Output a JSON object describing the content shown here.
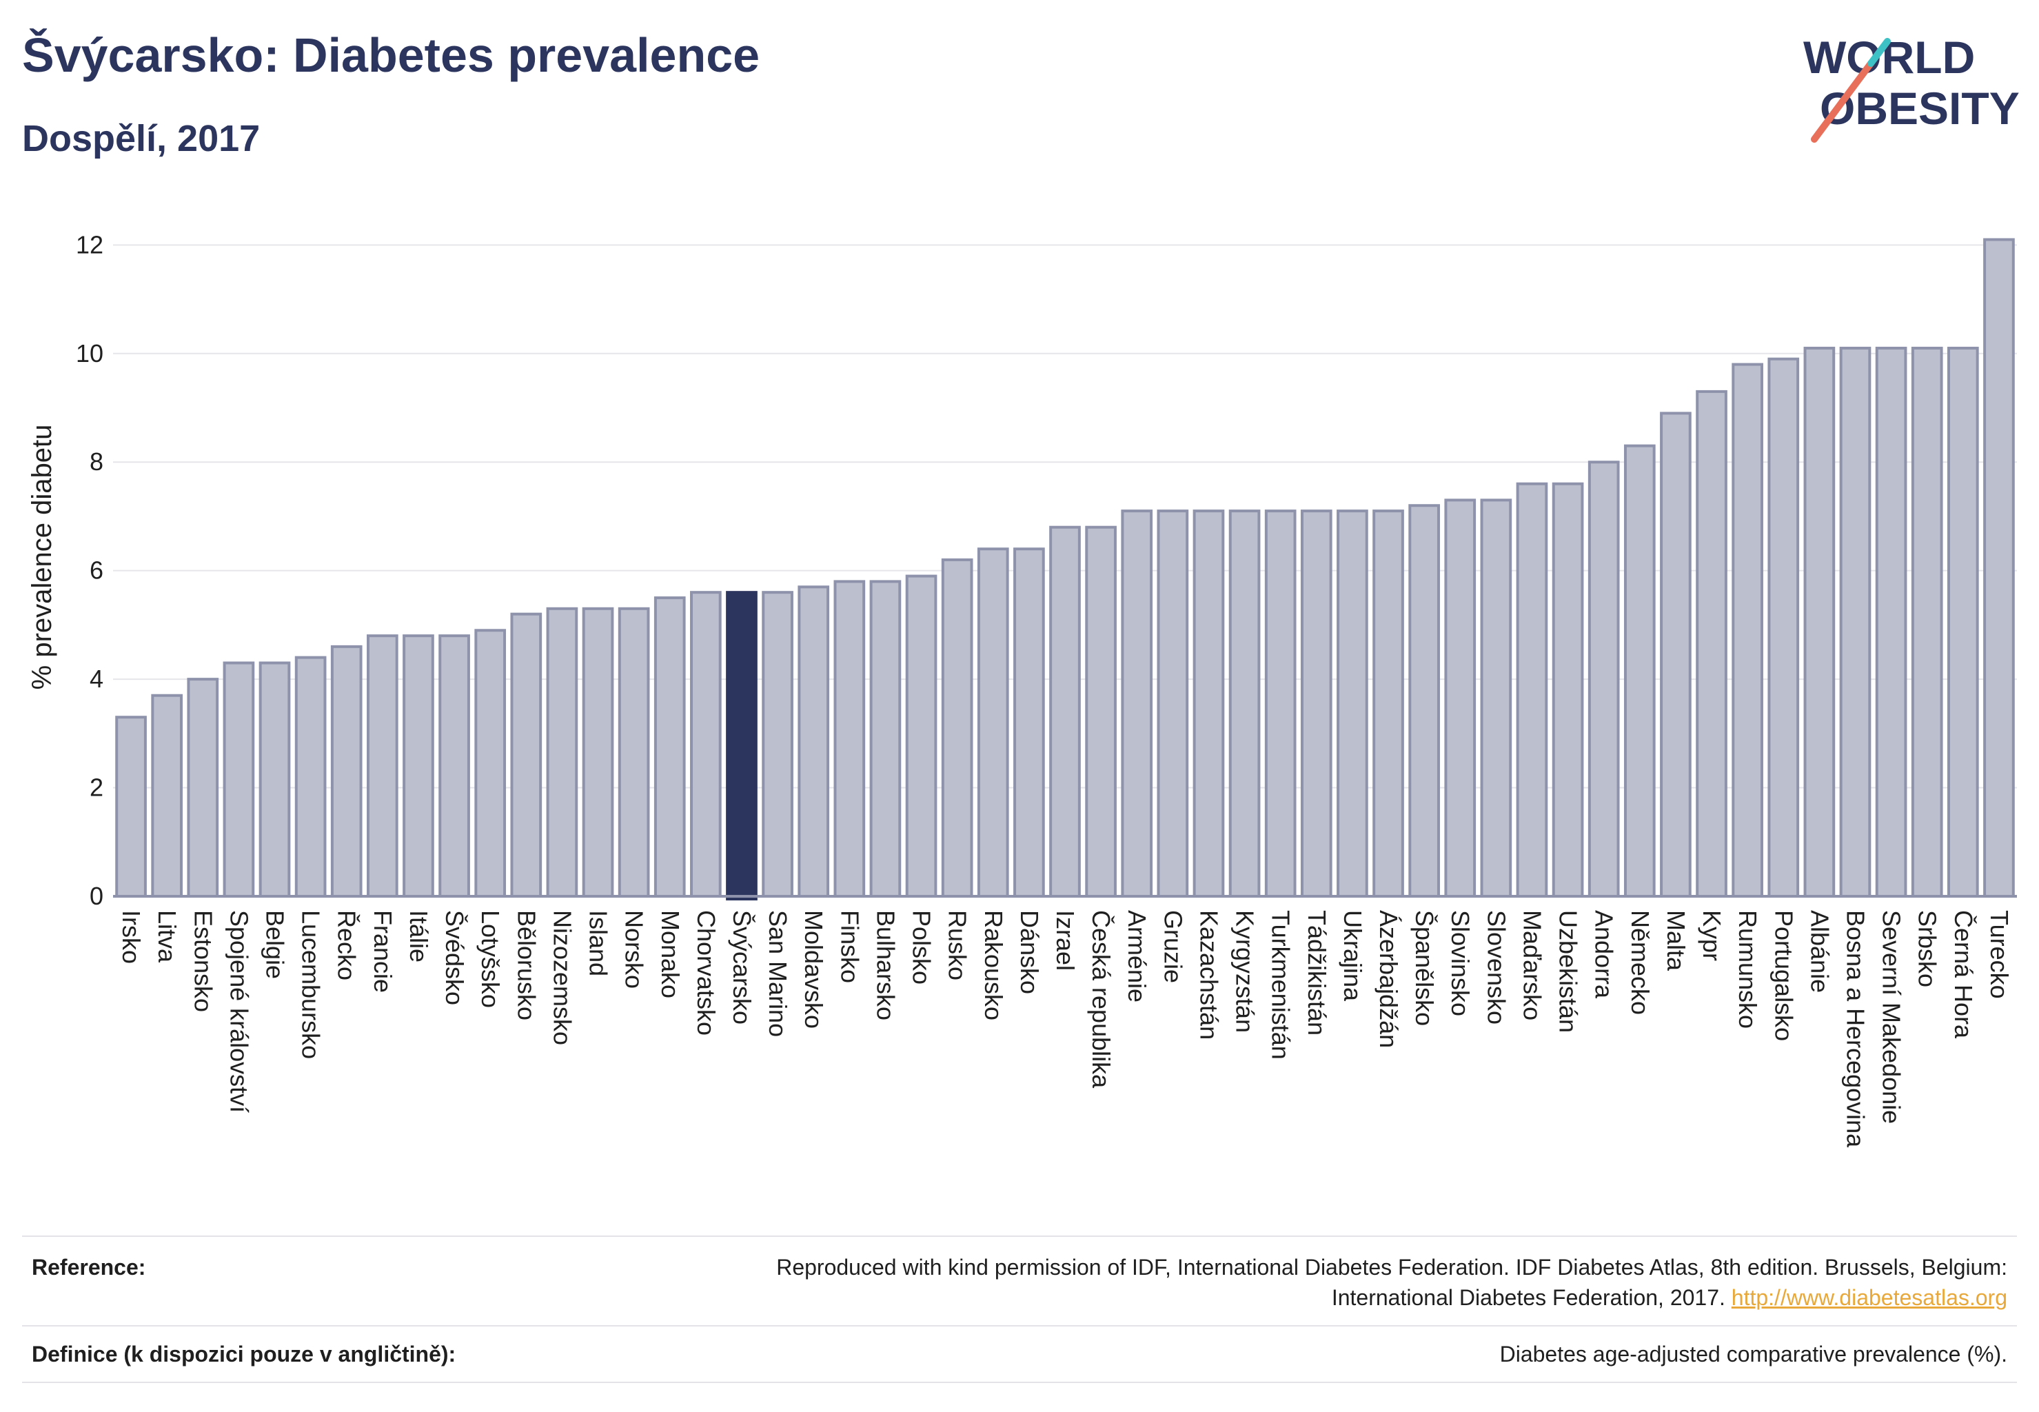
{
  "header": {
    "title": "Švýcarsko: Diabetes prevalence",
    "subtitle": "Dospělí, 2017"
  },
  "logo": {
    "line1": "WORLD",
    "line2": "OBESITY",
    "accent_color": "#e8705a",
    "accent_color_2": "#3ec1c4"
  },
  "colors": {
    "bar": "#bcbfcd",
    "bar_border": "#8e93ab",
    "highlight": "#2c355e",
    "grid": "#e6e6ea",
    "text": "#1f1f1f"
  },
  "chart_data": {
    "type": "bar",
    "ylabel": "% prevalence diabetu",
    "ylim": [
      0,
      12.5
    ],
    "yticks": [
      0,
      2,
      4,
      6,
      8,
      10,
      12
    ],
    "grid": true,
    "highlight_category": "Švýcarsko",
    "categories": [
      "Irsko",
      "Litva",
      "Estonsko",
      "Spojené království",
      "Belgie",
      "Lucembursko",
      "Řecko",
      "Francie",
      "Itálie",
      "Švédsko",
      "Lotyšsko",
      "Bělorusko",
      "Nizozemsko",
      "Island",
      "Norsko",
      "Monako",
      "Chorvatsko",
      "Švýcarsko",
      "San Marino",
      "Moldavsko",
      "Finsko",
      "Bulharsko",
      "Polsko",
      "Rusko",
      "Rakousko",
      "Dánsko",
      "Izrael",
      "Česká republika",
      "Arménie",
      "Gruzie",
      "Kazachstán",
      "Kyrgyzstán",
      "Turkmenistán",
      "Tádžikistán",
      "Ukrajina",
      "Ázerbajdžán",
      "Španělsko",
      "Slovinsko",
      "Slovensko",
      "Maďarsko",
      "Uzbekistán",
      "Andorra",
      "Německo",
      "Malta",
      "Kypr",
      "Rumunsko",
      "Portugalsko",
      "Albánie",
      "Bosna a Hercegovina",
      "Severní Makedonie",
      "Srbsko",
      "Černá Hora",
      "Turecko"
    ],
    "values": [
      3.3,
      3.7,
      4.0,
      4.3,
      4.3,
      4.4,
      4.6,
      4.8,
      4.8,
      4.8,
      4.9,
      5.2,
      5.3,
      5.3,
      5.3,
      5.5,
      5.6,
      5.6,
      5.6,
      5.7,
      5.8,
      5.8,
      5.9,
      6.2,
      6.4,
      6.4,
      6.8,
      6.8,
      7.1,
      7.1,
      7.1,
      7.1,
      7.1,
      7.1,
      7.1,
      7.1,
      7.2,
      7.3,
      7.3,
      7.6,
      7.6,
      8.0,
      8.3,
      8.9,
      9.3,
      9.8,
      9.9,
      10.1,
      10.1,
      10.1,
      10.1,
      10.1,
      12.1
    ]
  },
  "footer": {
    "reference_label": "Reference:",
    "reference_line1": "Reproduced with kind permission of IDF, International Diabetes Federation. IDF Diabetes Atlas, 8th edition. Brussels, Belgium:",
    "reference_line2": "International Diabetes Federation, 2017.",
    "reference_link": "http://www.diabetesatlas.org",
    "definition_label": "Definice (k dispozici pouze v angličtině):",
    "definition_value": "Diabetes age-adjusted comparative prevalence (%)."
  }
}
